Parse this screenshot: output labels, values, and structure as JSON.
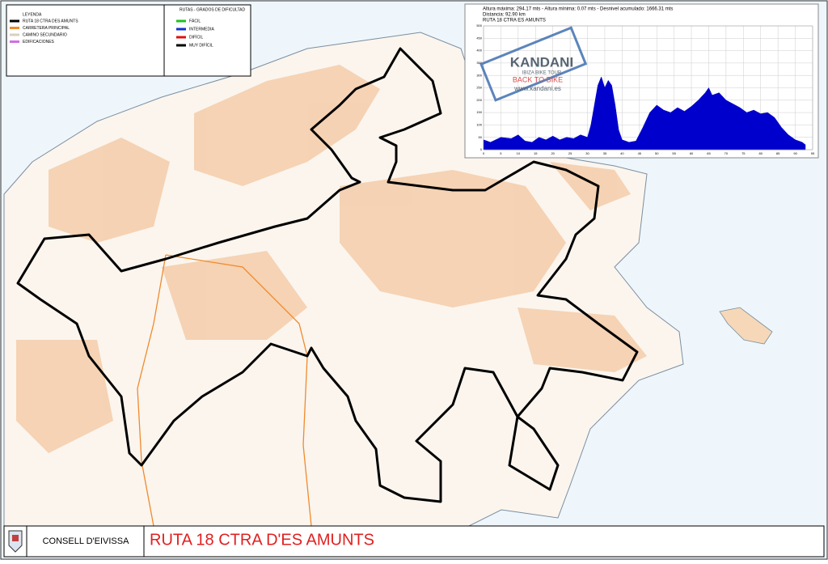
{
  "legend": {
    "title": "LEYENDA",
    "items": [
      {
        "label": "RUTA 18 CTRA DES AMUNTS",
        "color": "#000000"
      },
      {
        "label": "CARRETERA PRINCIPAL",
        "color": "#f08a2c"
      },
      {
        "label": "CAMINO SECUNDARIO",
        "color": "#d8d0c0"
      },
      {
        "label": "EDIFICACIONES",
        "color": "#d070e0"
      }
    ]
  },
  "difficulty": {
    "title": "RUTAS - GRADOS DE DIFICULTAD",
    "items": [
      {
        "label": "FÁCIL",
        "color": "#22c022"
      },
      {
        "label": "INTERMEDIA",
        "color": "#1030d0"
      },
      {
        "label": "DIFÍCIL",
        "color": "#e01010"
      },
      {
        "label": "MUY DIFÍCIL",
        "color": "#000000"
      }
    ]
  },
  "profile": {
    "stats": [
      "Altura máxima: 294.17 mts - Altura mínima: 0.07 mts - Desnivel acumulado: 1666.31 mts",
      "Distancia: 92.90 km",
      "RUTA 18 CTRA ES AMUNTS"
    ],
    "logo": {
      "name": "KANDANI",
      "tagline": "IBIZA BIKE TOUR",
      "slogan": "BACK TO BIKE",
      "url": "www.kandani.es"
    },
    "chart": {
      "type": "area",
      "color": "#0000cc",
      "x": [
        0,
        2,
        5,
        8,
        10,
        12,
        14,
        16,
        18,
        20,
        22,
        24,
        26,
        28,
        30,
        31,
        32,
        33,
        34,
        35,
        36,
        37,
        38,
        39,
        40,
        42,
        44,
        46,
        48,
        50,
        52,
        54,
        56,
        58,
        60,
        62,
        64,
        65,
        66,
        68,
        70,
        72,
        74,
        76,
        78,
        80,
        82,
        84,
        86,
        88,
        90,
        92,
        92.9
      ],
      "values": [
        40,
        30,
        50,
        45,
        60,
        35,
        30,
        50,
        40,
        55,
        40,
        50,
        45,
        60,
        50,
        100,
        180,
        260,
        294,
        250,
        280,
        260,
        180,
        80,
        40,
        30,
        35,
        90,
        150,
        180,
        160,
        150,
        170,
        155,
        175,
        200,
        230,
        250,
        220,
        230,
        200,
        185,
        170,
        150,
        160,
        145,
        150,
        130,
        90,
        60,
        40,
        30,
        20
      ],
      "xlim": [
        0,
        95
      ],
      "ylim": [
        0,
        500
      ],
      "xticks": [
        0,
        5,
        10,
        15,
        20,
        25,
        30,
        35,
        40,
        45,
        50,
        55,
        60,
        65,
        70,
        75,
        80,
        85,
        90,
        95
      ],
      "yticks": [
        0,
        50,
        100,
        150,
        200,
        250,
        300,
        350,
        400,
        450,
        500
      ],
      "grid": true
    }
  },
  "footer": {
    "organization": "CONSELL D'EIVISSA",
    "title": "RUTA 18 CTRA D'ES AMUNTS"
  }
}
